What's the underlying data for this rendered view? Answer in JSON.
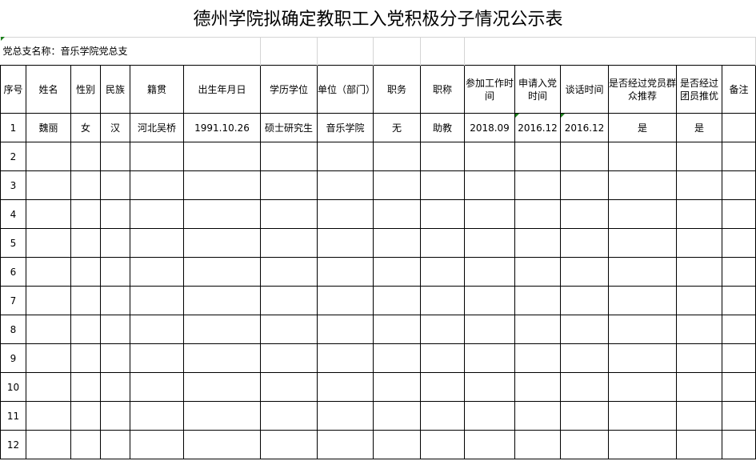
{
  "title": "德州学院拟确定教职工入党积极分子情况公示表",
  "branch_label": "党总支名称：音乐学院党总支",
  "headers": [
    "序号",
    "姓名",
    "性别",
    "民族",
    "籍贯",
    "出生年月日",
    "学历学位",
    "单位（部门）",
    "职务",
    "职称",
    "参加工作时间",
    "申请入党时间",
    "谈话时间",
    "是否经过党员群众推荐",
    "是否经过团员推优",
    "备注"
  ],
  "rows": [
    [
      "1",
      "魏丽",
      "女",
      "汉",
      "河北吴桥",
      "1991.10.26",
      "硕士研究生",
      "音乐学院",
      "无",
      "助教",
      "2018.09",
      "2016.12",
      "2016.12",
      "是",
      "是",
      ""
    ],
    [
      "2"
    ],
    [
      "3"
    ],
    [
      "4"
    ],
    [
      "5"
    ],
    [
      "6"
    ],
    [
      "7"
    ],
    [
      "8"
    ],
    [
      "9"
    ],
    [
      "10"
    ],
    [
      "11"
    ],
    [
      "12"
    ]
  ],
  "colors": {
    "border": "#000000",
    "gridline": "#d4d4d4",
    "cell_marker": "#1a7f1a"
  }
}
